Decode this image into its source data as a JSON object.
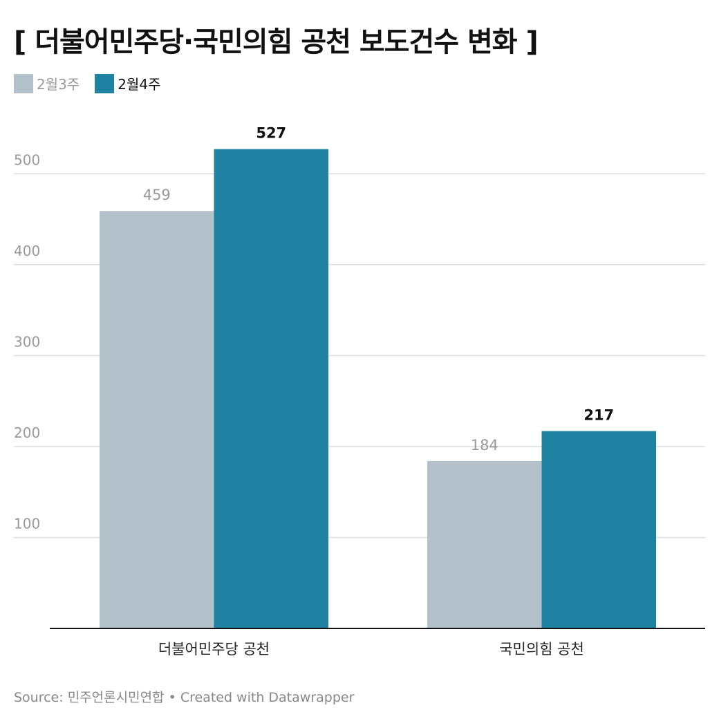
{
  "title": "[ 더불어민주당·국민의힘 공천 보도건수 변화 ]",
  "source": "Source: 민주언론시민연합 • Created with Datawrapper",
  "colors": {
    "series_1": "#b3c2ca",
    "series_2": "#1f82a2",
    "grid": "#dddddd",
    "axis": "#111111",
    "tick_label": "#999999",
    "category_label": "#222222",
    "label_1": "#999999",
    "label_2": "#111111"
  },
  "chart_data": {
    "type": "bar",
    "categories": [
      "더불어민주당 공천",
      "국민의힘 공천"
    ],
    "series": [
      {
        "name": "2월3주",
        "values": [
          459,
          184
        ]
      },
      {
        "name": "2월4주",
        "values": [
          527,
          217
        ]
      }
    ],
    "title": "[ 더불어민주당·국민의힘 공천 보도건수 변화 ]",
    "xlabel": "",
    "ylabel": "",
    "ylim": [
      0,
      575
    ],
    "yticks": [
      100,
      200,
      300,
      400,
      500
    ],
    "grid": true,
    "legend": "top-left"
  }
}
